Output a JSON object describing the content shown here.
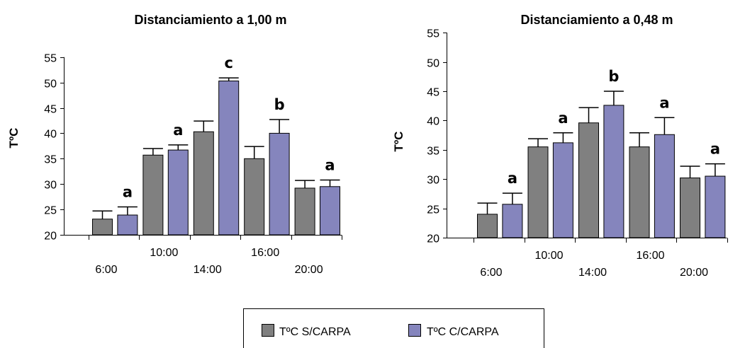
{
  "chart_data": [
    {
      "type": "bar",
      "title": "Distanciamiento a 1,00 m",
      "ylabel": "TºC",
      "xlabel": "",
      "ylim": [
        20,
        55
      ],
      "yticks": [
        20,
        25,
        30,
        35,
        40,
        45,
        50,
        55
      ],
      "categories": [
        "6:00",
        "10:00",
        "14:00",
        "16:00",
        "20:00"
      ],
      "series": [
        {
          "name": "TºC S/CARPA",
          "color": "#808080",
          "values": [
            23.1,
            35.7,
            40.3,
            35.0,
            29.2
          ],
          "errors": [
            1.6,
            1.3,
            2.1,
            2.4,
            1.5
          ]
        },
        {
          "name": "TºC C/CARPA",
          "color": "#8585bd",
          "values": [
            23.9,
            36.7,
            50.3,
            40.0,
            29.5
          ],
          "errors": [
            1.6,
            1.0,
            0.6,
            2.7,
            1.3
          ]
        }
      ],
      "significance_letters": [
        "a",
        "a",
        "c",
        "b",
        "a"
      ]
    },
    {
      "type": "bar",
      "title": "Distanciamiento a 0,48 m",
      "ylabel": "TºC",
      "xlabel": "",
      "ylim": [
        20,
        55
      ],
      "yticks": [
        20,
        25,
        30,
        35,
        40,
        45,
        50,
        55
      ],
      "categories": [
        "6:00",
        "10:00",
        "14:00",
        "16:00",
        "20:00"
      ],
      "series": [
        {
          "name": "TºC S/CARPA",
          "color": "#808080",
          "values": [
            24.0,
            35.5,
            39.6,
            35.5,
            30.2
          ],
          "errors": [
            1.9,
            1.4,
            2.6,
            2.4,
            2.0
          ]
        },
        {
          "name": "TºC C/CARPA",
          "color": "#8585bd",
          "values": [
            25.7,
            36.2,
            42.6,
            37.6,
            30.5
          ],
          "errors": [
            1.9,
            1.7,
            2.4,
            2.9,
            2.1
          ]
        }
      ],
      "significance_letters": [
        "a",
        "a",
        "b",
        "a",
        "a"
      ]
    }
  ],
  "legend": {
    "items": [
      {
        "label": "TºC S/CARPA",
        "color": "#808080"
      },
      {
        "label": "TºC C/CARPA",
        "color": "#8585bd"
      }
    ]
  }
}
